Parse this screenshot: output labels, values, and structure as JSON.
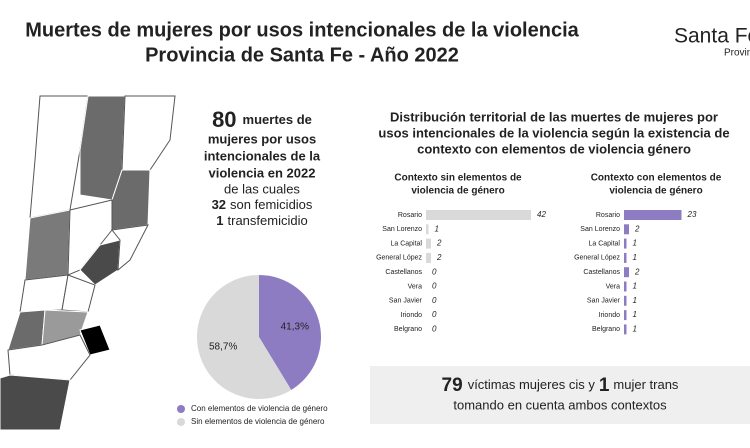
{
  "header": {
    "title_lines": [
      "Muertes de mujeres por usos intencionales de la violencia",
      "Provincia de Santa Fe - Año 2022"
    ],
    "logo": "Santa Fe",
    "logo_sub": "Provincia"
  },
  "summary": {
    "total": "80",
    "headline_lines": [
      "muertes de",
      "mujeres por usos",
      "intencionales de la",
      "violencia en 2022"
    ],
    "connector": "de las cuales",
    "femicides": "32",
    "femicides_text": "son femicidios",
    "transfemicides": "1",
    "transfemicides_text": "transfemicidio"
  },
  "section_title": [
    "Distribución territorial de las muertes de mujeres por",
    "usos intencionales de la violencia según la existencia de",
    "contexto con elementos de violencia género"
  ],
  "footer_box": {
    "cis": "79",
    "cis_text": "víctimas mujeres cis y",
    "trans": "1",
    "trans_text": "mujer trans",
    "line2": "tomando en cuenta ambos contextos"
  },
  "chart_data": [
    {
      "type": "pie",
      "categories": [
        "Con elementos de violencia de género",
        "Sin elementos de violencia de género"
      ],
      "values": [
        41.3,
        58.7
      ],
      "value_labels": [
        "41,3%",
        "58,7%"
      ],
      "colors": [
        "#8e7cc3",
        "#d9d9d9"
      ]
    },
    {
      "type": "bar",
      "title": [
        "Contexto sin elementos de",
        "violencia de género"
      ],
      "categories": [
        "Rosario",
        "San Lorenzo",
        "La Capital",
        "General López",
        "Castellanos",
        "Vera",
        "San Javier",
        "Iriondo",
        "Belgrano"
      ],
      "values": [
        42,
        1,
        2,
        2,
        0,
        0,
        0,
        0,
        0
      ],
      "color": "#d9d9d9"
    },
    {
      "type": "bar",
      "title": [
        "Contexto con elementos de",
        "violencia de género"
      ],
      "categories": [
        "Rosario",
        "San Lorenzo",
        "La Capital",
        "General López",
        "Castellanos",
        "Vera",
        "San Javier",
        "Iriondo",
        "Belgrano"
      ],
      "values": [
        23,
        2,
        1,
        1,
        2,
        1,
        1,
        1,
        1
      ],
      "color": "#8e7cc3"
    }
  ]
}
